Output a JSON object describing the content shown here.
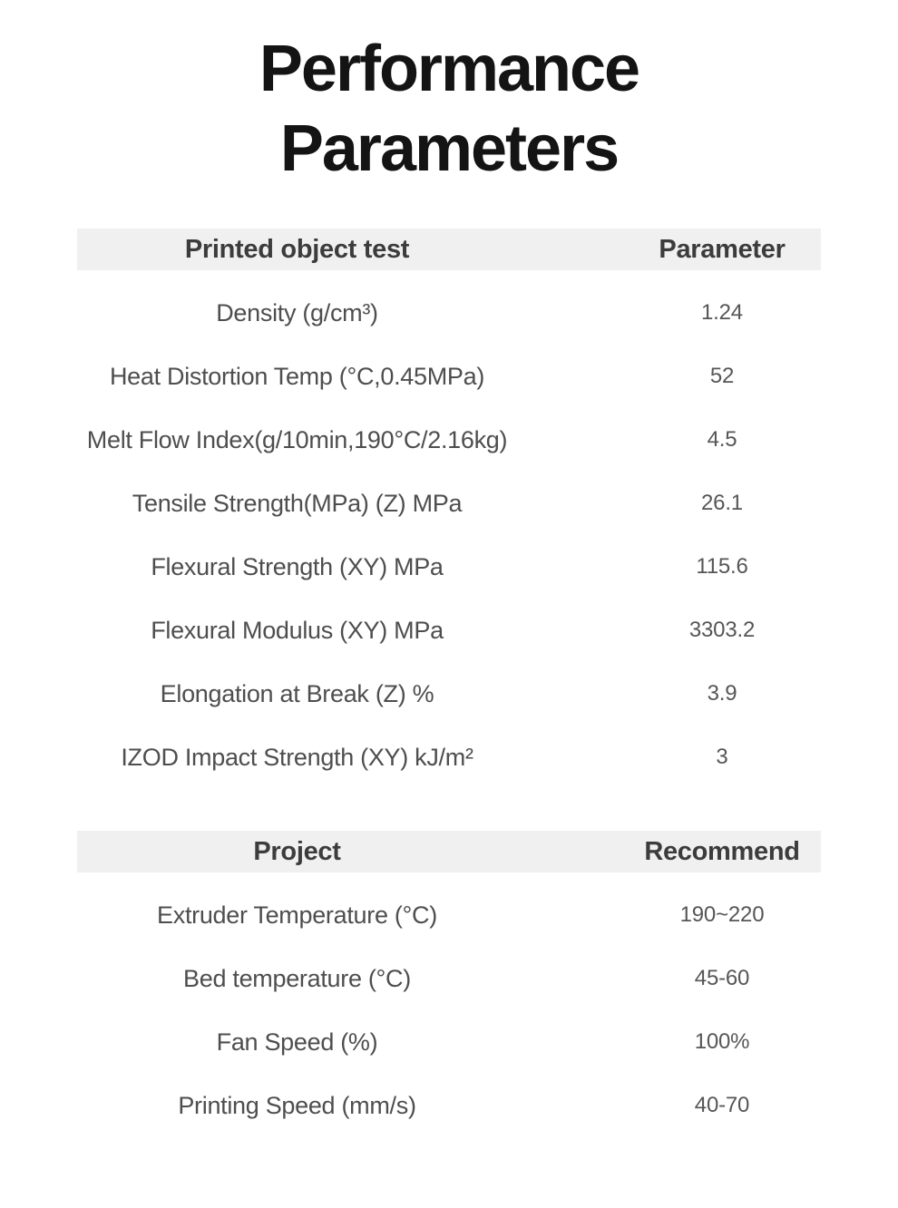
{
  "page": {
    "title_line1": "Performance",
    "title_line2": "Parameters"
  },
  "tables": [
    {
      "header": {
        "col1": "Printed object test",
        "col2": "Parameter"
      },
      "rows": [
        {
          "label": "Density (g/cm³)",
          "value": "1.24"
        },
        {
          "label": "Heat Distortion Temp (°C,0.45MPa)",
          "value": "52"
        },
        {
          "label": "Melt Flow Index(g/10min,190°C/2.16kg)",
          "value": "4.5"
        },
        {
          "label": "Tensile Strength(MPa) (Z) MPa",
          "value": "26.1"
        },
        {
          "label": "Flexural Strength (XY) MPa",
          "value": "115.6"
        },
        {
          "label": "Flexural Modulus (XY) MPa",
          "value": "3303.2"
        },
        {
          "label": "Elongation at Break (Z) %",
          "value": "3.9"
        },
        {
          "label": "IZOD Impact Strength (XY) kJ/m²",
          "value": "3"
        }
      ]
    },
    {
      "header": {
        "col1": "Project",
        "col2": "Recommend"
      },
      "rows": [
        {
          "label": "Extruder Temperature (°C)",
          "value": "190~220"
        },
        {
          "label": "Bed temperature (°C)",
          "value": "45-60"
        },
        {
          "label": "Fan Speed (%)",
          "value": "100%"
        },
        {
          "label": "Printing Speed (mm/s)",
          "value": "40-70"
        }
      ]
    }
  ],
  "colors": {
    "band_bg": "#f0f0f0",
    "title_color": "#141414",
    "header_color": "#3c3c3c",
    "label_color": "#4e4e4e",
    "value_color": "#565656"
  }
}
